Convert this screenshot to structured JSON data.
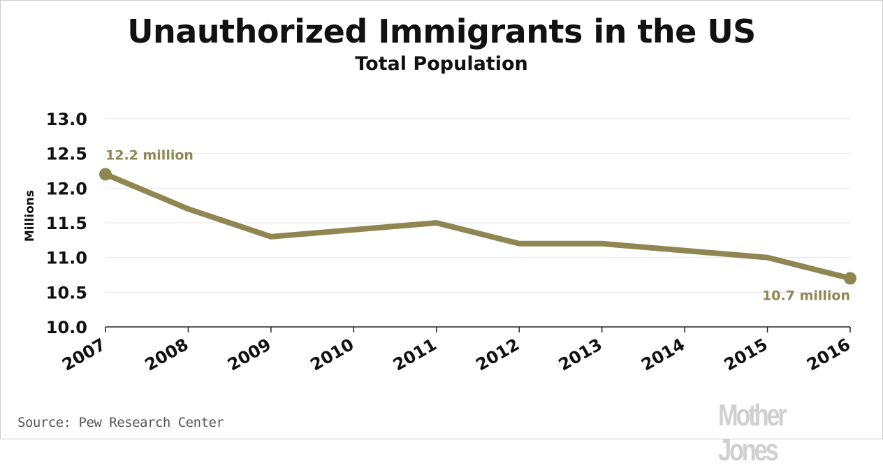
{
  "chart_data": {
    "type": "line",
    "title": "Unauthorized Immigrants in the US",
    "subtitle": "Total Population",
    "xlabel": "",
    "ylabel": "Millions",
    "categories": [
      "2007",
      "2008",
      "2009",
      "2010",
      "2011",
      "2012",
      "2013",
      "2014",
      "2015",
      "2016"
    ],
    "values": [
      12.2,
      11.7,
      11.3,
      11.4,
      11.5,
      11.2,
      11.2,
      11.1,
      11.0,
      10.7
    ],
    "ylim": [
      10.0,
      13.0
    ],
    "yticks": [
      "10.0",
      "10.5",
      "11.0",
      "11.5",
      "12.0",
      "12.5",
      "13.0"
    ],
    "grid": true,
    "color": "#8f8651",
    "annotations": [
      {
        "label": "12.2 million",
        "category": "2007"
      },
      {
        "label": "10.7 million",
        "category": "2016"
      }
    ],
    "source": "Source: Pew Research Center",
    "logo": "Mother Jones"
  }
}
